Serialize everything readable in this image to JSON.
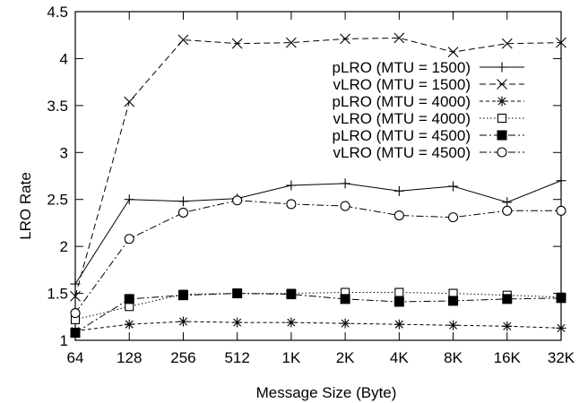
{
  "chart_data": {
    "type": "line",
    "xlabel": "Message Size (Byte)",
    "ylabel": "LRO Rate",
    "categories": [
      "64",
      "128",
      "256",
      "512",
      "1K",
      "2K",
      "4K",
      "8K",
      "16K",
      "32K"
    ],
    "ylim": [
      1,
      4.5
    ],
    "yticks": [
      "1",
      "1.5",
      "2",
      "2.5",
      "3",
      "3.5",
      "4",
      "4.5"
    ],
    "grid": false,
    "legend_position": "top-right",
    "series": [
      {
        "name": "pLRO (MTU = 1500)",
        "style": "solid",
        "marker": "plus",
        "values": [
          1.6,
          2.5,
          2.48,
          2.51,
          2.65,
          2.67,
          2.59,
          2.64,
          2.47,
          2.7
        ]
      },
      {
        "name": "vLRO (MTU = 1500)",
        "style": "dashed",
        "marker": "cross",
        "values": [
          1.47,
          3.54,
          4.2,
          4.16,
          4.17,
          4.21,
          4.22,
          4.07,
          4.16,
          4.17
        ]
      },
      {
        "name": "pLRO (MTU = 4000)",
        "style": "short-dash",
        "marker": "star",
        "values": [
          1.1,
          1.17,
          1.2,
          1.19,
          1.19,
          1.18,
          1.17,
          1.16,
          1.15,
          1.13
        ]
      },
      {
        "name": "vLRO (MTU = 4000)",
        "style": "dotted",
        "marker": "open-square",
        "values": [
          1.22,
          1.36,
          1.49,
          1.5,
          1.5,
          1.51,
          1.51,
          1.5,
          1.48,
          1.46
        ]
      },
      {
        "name": "pLRO (MTU = 4500)",
        "style": "dash-dot",
        "marker": "filled-square",
        "values": [
          1.08,
          1.44,
          1.48,
          1.5,
          1.49,
          1.44,
          1.41,
          1.42,
          1.44,
          1.45
        ]
      },
      {
        "name": "vLRO (MTU = 4500)",
        "style": "dash-dot",
        "marker": "open-circle",
        "values": [
          1.29,
          2.08,
          2.36,
          2.49,
          2.45,
          2.43,
          2.33,
          2.31,
          2.38,
          2.38
        ]
      }
    ]
  }
}
